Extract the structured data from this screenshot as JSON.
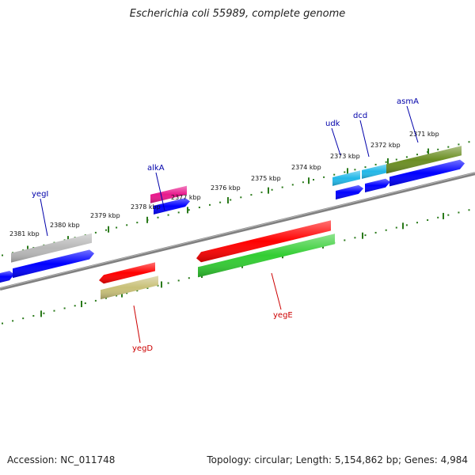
{
  "header": {
    "title": "Escherichia coli 55989, complete genome"
  },
  "footer": {
    "accession": "Accession: NC_011748",
    "summary": "Topology: circular; Length: 5,154,862 bp; Genes: 4,984"
  },
  "colors": {
    "backbone": "#808080",
    "ruler": "#2a7a1a",
    "forward_label": "#0000aa",
    "reverse_label": "#cc0000",
    "cds": "#0000ff"
  },
  "scale_labels": [
    "2381 kbp",
    "2380 kbp",
    "2379 kbp",
    "2378 kbp",
    "2377 kbp",
    "2376 kbp",
    "2375 kbp",
    "2374 kbp",
    "2373 kbp",
    "2372 kbp",
    "2371 kbp"
  ],
  "genes": [
    {
      "name": "yegI",
      "strand": "forward",
      "color": "#b8b8b8"
    },
    {
      "name": "alkA",
      "strand": "forward",
      "color": "#e8188c"
    },
    {
      "name": "udk",
      "strand": "forward",
      "color": "#22b8e8"
    },
    {
      "name": "dcd",
      "strand": "forward",
      "color": "#22b8e8"
    },
    {
      "name": "asmA",
      "strand": "forward",
      "color": "#6b8e23"
    },
    {
      "name": "yegD",
      "strand": "reverse",
      "color": "#c8c078"
    },
    {
      "name": "yegE",
      "strand": "reverse",
      "color": "#32cd32"
    }
  ],
  "cds_features": [
    {
      "gene": "yegD",
      "strand": "reverse",
      "color": "#ff0000"
    },
    {
      "gene": "yegE",
      "strand": "reverse",
      "color": "#ff0000"
    }
  ]
}
